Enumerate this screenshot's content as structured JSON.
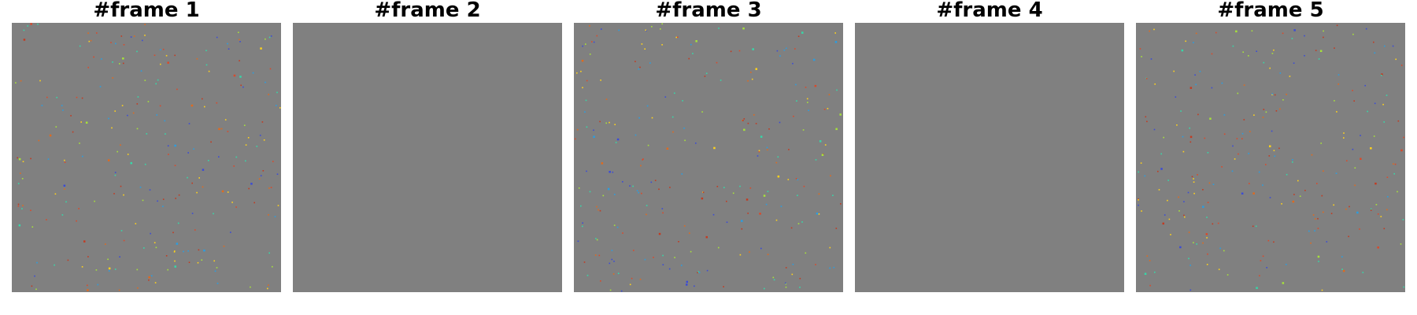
{
  "figure": {
    "background_color": "#808080",
    "frames": [
      {
        "title": "#frame 1",
        "has_dots": true,
        "seed": 11
      },
      {
        "title": "#frame 2",
        "has_dots": false,
        "seed": 0
      },
      {
        "title": "#frame 3",
        "has_dots": true,
        "seed": 37
      },
      {
        "title": "#frame 4",
        "has_dots": false,
        "seed": 0
      },
      {
        "title": "#frame 5",
        "has_dots": true,
        "seed": 73
      }
    ],
    "dot_colors": [
      "#d94a2b",
      "#e06a1e",
      "#ffd21a",
      "#a6e23a",
      "#36d8a8",
      "#2a9de0",
      "#3b4bd6",
      "#c23b22"
    ]
  }
}
